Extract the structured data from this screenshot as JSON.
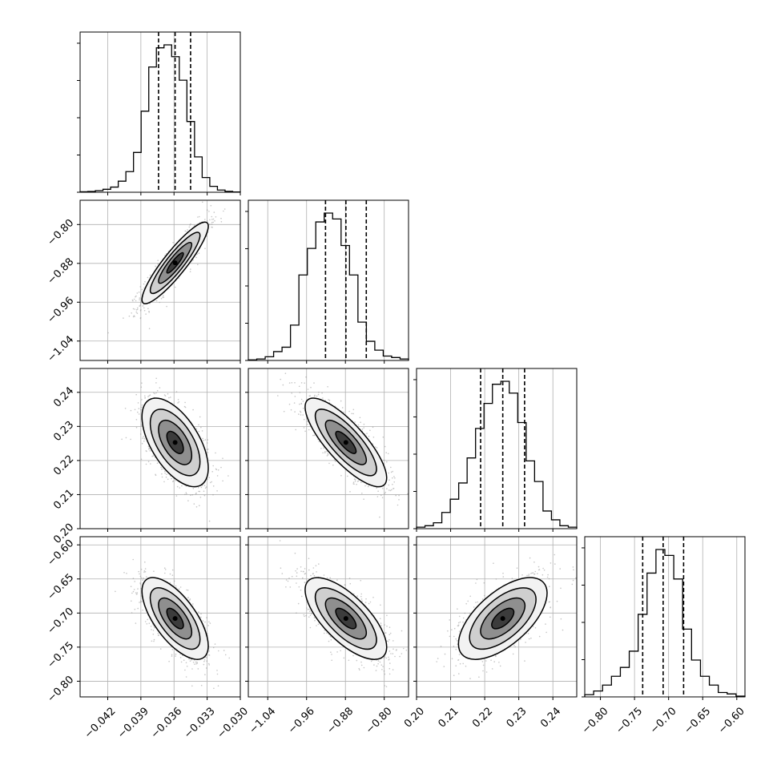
{
  "chart_data": {
    "type": "corner",
    "parameters": [
      {
        "range": [
          -0.0445,
          -0.03
        ],
        "ticks": [
          -0.042,
          -0.039,
          -0.036,
          -0.033,
          -0.03
        ],
        "tick_labels": [
          "−0.042",
          "−0.039",
          "−0.036",
          "−0.033",
          "−0.030"
        ]
      },
      {
        "range": [
          -1.08,
          -0.75
        ],
        "ticks": [
          -1.04,
          -0.96,
          -0.88,
          -0.8
        ],
        "tick_labels": [
          "−1.04",
          "−0.96",
          "−0.88",
          "−0.80"
        ]
      },
      {
        "range": [
          0.2,
          0.247
        ],
        "ticks": [
          0.2,
          0.21,
          0.22,
          0.23,
          0.24
        ],
        "tick_labels": [
          "0.20",
          "0.21",
          "0.22",
          "0.23",
          "0.24"
        ]
      },
      {
        "range": [
          -0.823,
          -0.588
        ],
        "ticks": [
          -0.8,
          -0.75,
          -0.7,
          -0.65,
          -0.6
        ],
        "tick_labels": [
          "−0.80",
          "−0.75",
          "−0.70",
          "−0.65",
          "−0.60"
        ]
      }
    ],
    "histograms": [
      {
        "quantiles": [
          -0.0374,
          -0.0359,
          -0.0345
        ],
        "counts": [
          0.003,
          0.005,
          0.011,
          0.02,
          0.035,
          0.075,
          0.14,
          0.27,
          0.55,
          0.85,
          0.98,
          1.0,
          0.92,
          0.76,
          0.48,
          0.24,
          0.1,
          0.04,
          0.015,
          0.006,
          0.002
        ]
      },
      {
        "quantiles": [
          -0.921,
          -0.879,
          -0.837
        ],
        "counts": [
          0.004,
          0.01,
          0.025,
          0.06,
          0.09,
          0.24,
          0.58,
          0.76,
          0.94,
          1.0,
          0.96,
          0.78,
          0.58,
          0.26,
          0.13,
          0.07,
          0.03,
          0.02,
          0.01
        ]
      },
      {
        "quantiles": [
          0.2188,
          0.2253,
          0.2317
        ],
        "counts": [
          0.01,
          0.02,
          0.04,
          0.11,
          0.2,
          0.31,
          0.48,
          0.68,
          0.85,
          0.98,
          1.0,
          0.92,
          0.72,
          0.46,
          0.32,
          0.12,
          0.06,
          0.02,
          0.01
        ]
      },
      {
        "quantiles": [
          -0.738,
          -0.708,
          -0.678
        ],
        "counts": [
          0.015,
          0.04,
          0.08,
          0.14,
          0.2,
          0.31,
          0.56,
          0.84,
          1.0,
          0.96,
          0.8,
          0.46,
          0.25,
          0.14,
          0.08,
          0.03,
          0.02,
          0.005
        ]
      }
    ],
    "pairs": [
      {
        "i": 1,
        "j": 0,
        "mean": [
          -0.0359,
          -0.879
        ],
        "sd": [
          0.0015,
          0.042
        ],
        "corr": 0.9
      },
      {
        "i": 2,
        "j": 0,
        "mean": [
          -0.0359,
          0.2253
        ],
        "sd": [
          0.0015,
          0.0065
        ],
        "corr": -0.58
      },
      {
        "i": 2,
        "j": 1,
        "mean": [
          -0.879,
          0.2253
        ],
        "sd": [
          0.042,
          0.0065
        ],
        "corr": -0.8
      },
      {
        "i": 3,
        "j": 0,
        "mean": [
          -0.0359,
          -0.708
        ],
        "sd": [
          0.0015,
          0.03
        ],
        "corr": -0.67
      },
      {
        "i": 3,
        "j": 1,
        "mean": [
          -0.879,
          -0.708
        ],
        "sd": [
          0.042,
          0.03
        ],
        "corr": -0.7
      },
      {
        "i": 3,
        "j": 2,
        "mean": [
          0.2253,
          -0.708
        ],
        "sd": [
          0.0065,
          0.03
        ],
        "corr": 0.62
      }
    ],
    "contour_levels_sigma": [
      0.5,
      1.0,
      1.5,
      2.0
    ],
    "grid": true,
    "colors": {
      "line": "#000000",
      "grid": "#b0b0b0",
      "contour": "#000000",
      "sample": "#8c8c8c"
    }
  }
}
